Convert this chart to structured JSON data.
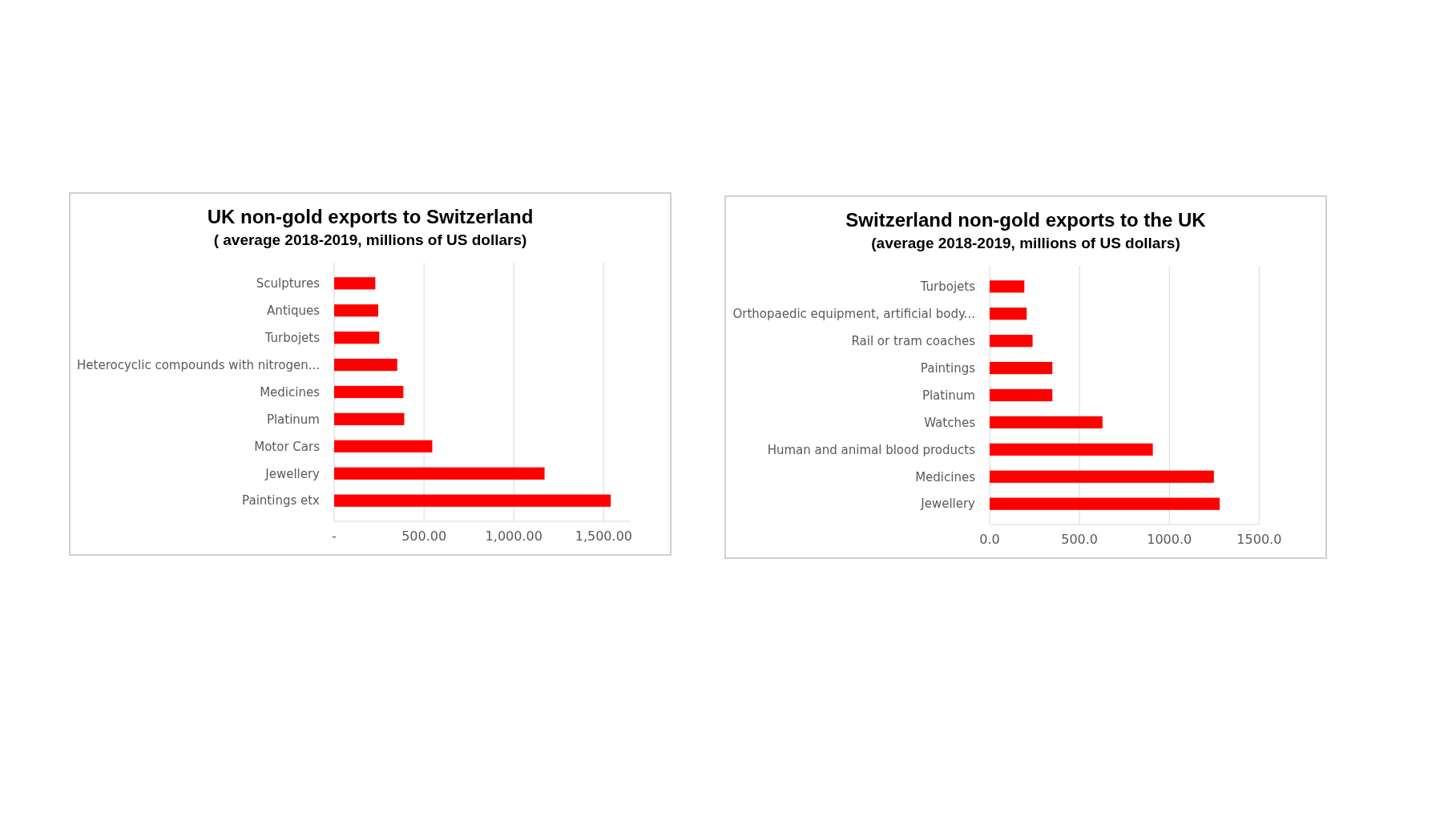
{
  "chart_data": [
    {
      "type": "bar",
      "orientation": "horizontal",
      "title": "UK non-gold exports to Switzerland",
      "subtitle": "( average 2018-2019, millions of US dollars)",
      "categories": [
        "Sculptures",
        "Antiques",
        "Turbojets",
        "Heterocyclic compounds with nitrogen...",
        "Medicines",
        "Platinum",
        "Motor Cars",
        "Jewellery",
        "Paintings etx"
      ],
      "values": [
        229,
        245,
        251,
        351,
        385,
        390,
        546,
        1171,
        1539
      ],
      "color": "#ff0000",
      "xlim": [
        0,
        1650
      ],
      "xticks": [
        {
          "value": 0,
          "label": "-"
        },
        {
          "value": 500,
          "label": "500.00"
        },
        {
          "value": 1000,
          "label": "1,000.00"
        },
        {
          "value": 1500,
          "label": "1,500.00"
        }
      ],
      "grid": "x"
    },
    {
      "type": "bar",
      "orientation": "horizontal",
      "title": "Switzerland non-gold exports to the UK",
      "subtitle": "(average 2018-2019, millions of US dollars)",
      "categories": [
        "Turbojets",
        "Orthopaedic equipment, artificial body...",
        "Rail or tram coaches",
        "Paintings",
        "Platinum",
        "Watches",
        "Human and animal blood products",
        "Medicines",
        "Jewellery"
      ],
      "values": [
        193,
        206,
        239,
        349,
        349,
        628,
        908,
        1248,
        1280
      ],
      "color": "#ff0000",
      "xlim": [
        0,
        1500
      ],
      "xticks": [
        {
          "value": 0,
          "label": "0.0"
        },
        {
          "value": 500,
          "label": "500.0"
        },
        {
          "value": 1000,
          "label": "1000.0"
        },
        {
          "value": 1500,
          "label": "1500.0"
        }
      ],
      "grid": "x"
    }
  ]
}
